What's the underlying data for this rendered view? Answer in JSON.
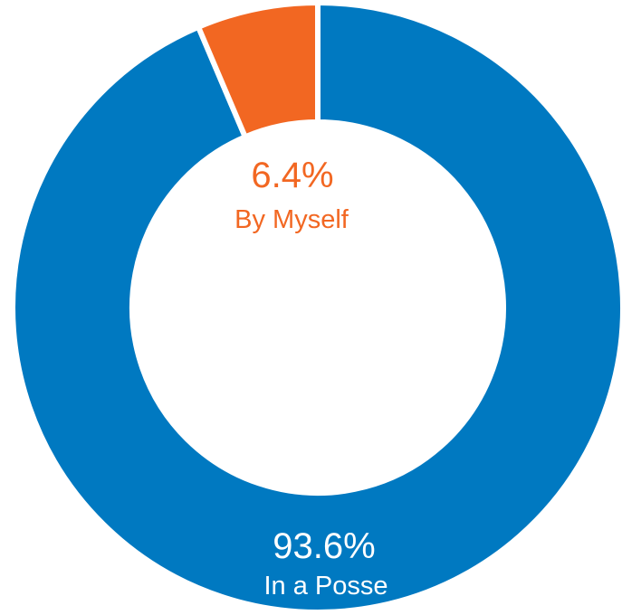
{
  "chart_data": {
    "type": "pie",
    "donut": true,
    "slices": [
      {
        "label": "In a Posse",
        "value": 93.6,
        "value_text": "93.6%",
        "color": "#0079C1",
        "label_color": "#ffffff"
      },
      {
        "label": "By Myself",
        "value": 6.4,
        "value_text": "6.4%",
        "color": "#F26722",
        "label_color": "#F26722"
      }
    ],
    "separator_color": "#ffffff",
    "legend": "none"
  }
}
